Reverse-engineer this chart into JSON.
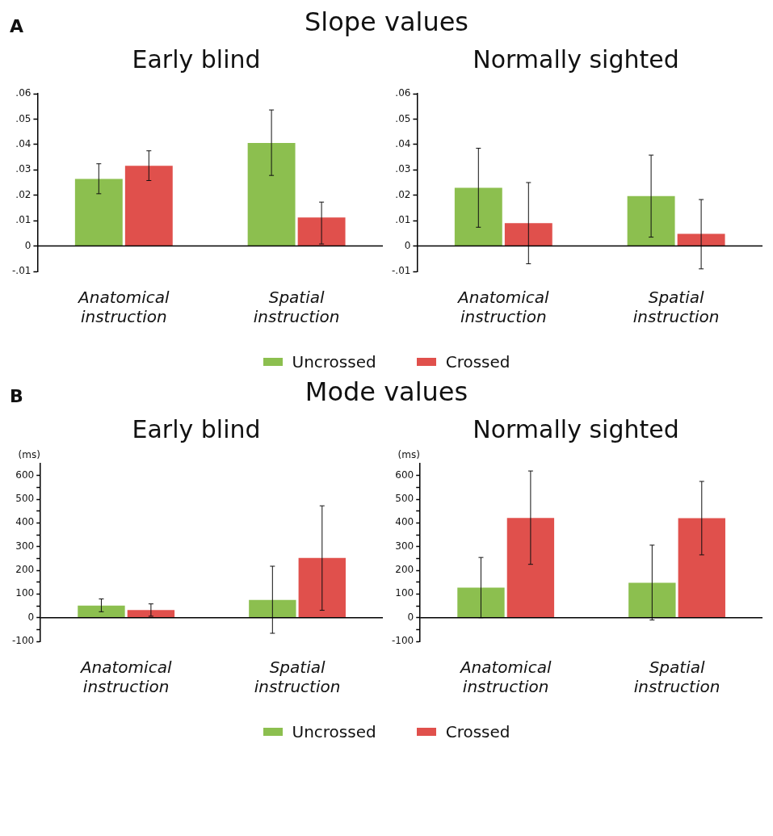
{
  "chart_data": [
    {
      "type": "bar",
      "title": "Early blind",
      "annotations": [
        "A",
        "Slope values"
      ],
      "categories": [
        "Anatomical instruction",
        "Spatial instruction"
      ],
      "ylim": [
        -0.01,
        0.06
      ],
      "yticks": [
        {
          "value": -0.01,
          "label": "-.01"
        },
        0,
        {
          "value": 0.01,
          "label": ".01"
        },
        {
          "value": 0.02,
          "label": ".02"
        },
        {
          "value": 0.03,
          "label": ".03"
        },
        {
          "value": 0.04,
          "label": ".04"
        },
        {
          "value": 0.05,
          "label": ".05"
        },
        {
          "value": 0.06,
          "label": ".06"
        }
      ],
      "grid": false,
      "legend": "bottom",
      "series": [
        {
          "name": "Uncrossed",
          "color": "#8cbf4f",
          "values": [
            0.0264,
            0.0406
          ],
          "errors": [
            [
              0.0206,
              0.0324
            ],
            [
              0.0278,
              0.0536
            ]
          ]
        },
        {
          "name": "Crossed",
          "color": "#e0504c",
          "values": [
            0.0316,
            0.0112
          ],
          "errors": [
            [
              0.0258,
              0.0375
            ],
            [
              0.0008,
              0.0173
            ]
          ]
        }
      ]
    },
    {
      "type": "bar",
      "title": "Normally sighted",
      "categories": [
        "Anatomical instruction",
        "Spatial instruction"
      ],
      "ylim": [
        -0.01,
        0.06
      ],
      "yticks": [
        {
          "value": -0.01,
          "label": "-.01"
        },
        0,
        {
          "value": 0.01,
          "label": ".01"
        },
        {
          "value": 0.02,
          "label": ".02"
        },
        {
          "value": 0.03,
          "label": ".03"
        },
        {
          "value": 0.04,
          "label": ".04"
        },
        {
          "value": 0.05,
          "label": ".05"
        },
        {
          "value": 0.06,
          "label": ".06"
        }
      ],
      "grid": false,
      "series": [
        {
          "color": "#8cbf4f",
          "values": [
            0.0229,
            0.0197
          ],
          "errors": [
            [
              0.0074,
              0.0385
            ],
            [
              0.0035,
              0.0358
            ]
          ]
        },
        {
          "color": "#e0504c",
          "values": [
            0.009,
            0.0048
          ],
          "errors": [
            [
              -0.007,
              0.025
            ],
            [
              -0.009,
              0.0183
            ]
          ]
        }
      ]
    },
    {
      "type": "bar",
      "title": "Early blind",
      "ylabel": "(ms)",
      "annotations": [
        "B",
        "Mode values"
      ],
      "categories": [
        "Anatomical instruction",
        "Spatial instruction"
      ],
      "ylim": [
        -100,
        650
      ],
      "yticks": [
        -100,
        {
          "value": -50,
          "label": null
        },
        0,
        {
          "value": 50,
          "label": null
        },
        100,
        {
          "value": 150,
          "label": null
        },
        200,
        {
          "value": 250,
          "label": null
        },
        300,
        {
          "value": 350,
          "label": null
        },
        400,
        {
          "value": 450,
          "label": null
        },
        500,
        {
          "value": 550,
          "label": null
        },
        600
      ],
      "grid": false,
      "legend": "bottom",
      "series": [
        {
          "name": "Uncrossed",
          "color": "#8cbf4f",
          "values": [
            51,
            75
          ],
          "errors": [
            [
              25,
              79
            ],
            [
              -66,
              217
            ]
          ]
        },
        {
          "name": "Crossed",
          "color": "#e0504c",
          "values": [
            32,
            252
          ],
          "errors": [
            [
              6,
              58
            ],
            [
              31,
              472
            ]
          ]
        }
      ]
    },
    {
      "type": "bar",
      "title": "Normally sighted",
      "ylabel": "(ms)",
      "categories": [
        "Anatomical instruction",
        "Spatial instruction"
      ],
      "ylim": [
        -100,
        650
      ],
      "yticks": [
        -100,
        {
          "value": -50,
          "label": null
        },
        0,
        {
          "value": 50,
          "label": null
        },
        100,
        {
          "value": 150,
          "label": null
        },
        200,
        {
          "value": 250,
          "label": null
        },
        300,
        {
          "value": 350,
          "label": null
        },
        400,
        {
          "value": 450,
          "label": null
        },
        500,
        {
          "value": 550,
          "label": null
        },
        600
      ],
      "grid": false,
      "series": [
        {
          "color": "#8cbf4f",
          "values": [
            127,
            147
          ],
          "errors": [
            [
              0,
              254
            ],
            [
              -10,
              306
            ]
          ]
        },
        {
          "color": "#e0504c",
          "values": [
            421,
            420
          ],
          "errors": [
            [
              225,
              619
            ],
            [
              265,
              575
            ]
          ]
        }
      ]
    }
  ]
}
